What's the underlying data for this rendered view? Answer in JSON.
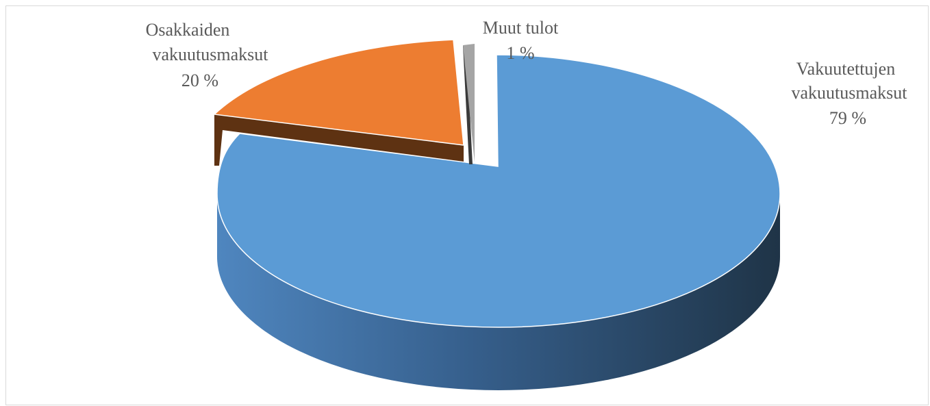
{
  "chart_data": {
    "type": "pie",
    "style": "3d-exploded",
    "slices": [
      {
        "name": "Vakuutettujen vakuutusmaksut",
        "label_lines": [
          "Vakuutettujen",
          "vakuutusmaksut"
        ],
        "pct_label": "79 %",
        "value": 79,
        "color": "#5b9bd5"
      },
      {
        "name": "Osakkaiden vakuutusmaksut",
        "label_lines": [
          "Osakkaiden",
          "vakuutusmaksut"
        ],
        "pct_label": "20 %",
        "value": 20,
        "color": "#ed7d31"
      },
      {
        "name": "Muut tulot",
        "label_lines": [
          "Muut tulot"
        ],
        "pct_label": "1 %",
        "value": 1,
        "color": "#a5a5a5"
      }
    ]
  }
}
